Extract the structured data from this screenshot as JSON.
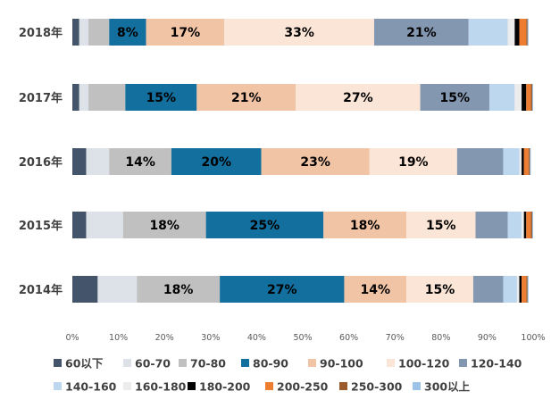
{
  "chart_data": {
    "type": "bar",
    "orientation": "horizontal",
    "stacked": "percent",
    "categories": [
      "2018年",
      "2017年",
      "2016年",
      "2015年",
      "2014年"
    ],
    "xlim": [
      0,
      100
    ],
    "xticks": [
      "0%",
      "10%",
      "20%",
      "30%",
      "40%",
      "50%",
      "60%",
      "70%",
      "80%",
      "90%",
      "100%"
    ],
    "grid": false,
    "legend_position": "bottom",
    "series": [
      {
        "name": "60以下",
        "color": "#44546a",
        "label_color": "#ffffff",
        "values": [
          1.5,
          1.5,
          3.0,
          3.0,
          5.5
        ]
      },
      {
        "name": "60-70",
        "color": "#dde1e8",
        "label_color": "#000000",
        "values": [
          2.0,
          2.0,
          5.0,
          8.0,
          8.5
        ]
      },
      {
        "name": "70-80",
        "color": "#c0c0c0",
        "label_color": "#000000",
        "values": [
          4.5,
          8.0,
          13.5,
          18.0,
          18.0
        ]
      },
      {
        "name": "80-90",
        "color": "#136f9e",
        "label_color": "#000000",
        "values": [
          8.0,
          15.5,
          19.5,
          25.5,
          27.0
        ]
      },
      {
        "name": "90-100",
        "color": "#f2c4a6",
        "label_color": "#000000",
        "values": [
          17.0,
          21.5,
          23.5,
          18.0,
          13.5
        ]
      },
      {
        "name": "100-120",
        "color": "#fbe5d6",
        "label_color": "#000000",
        "values": [
          32.5,
          27.0,
          19.0,
          15.0,
          14.5
        ]
      },
      {
        "name": "120-140",
        "color": "#8497b0",
        "label_color": "#000000",
        "values": [
          20.5,
          15.0,
          10.0,
          7.0,
          6.5
        ]
      },
      {
        "name": "140-160",
        "color": "#bdd7ee",
        "label_color": "#000000",
        "values": [
          8.5,
          5.5,
          3.5,
          3.0,
          3.0
        ]
      },
      {
        "name": "160-180",
        "color": "#ececec",
        "label_color": "#000000",
        "values": [
          1.5,
          1.5,
          0.5,
          0.5,
          0.5
        ]
      },
      {
        "name": "180-200",
        "color": "#000000",
        "label_color": "#ffffff",
        "values": [
          1.0,
          1.0,
          0.5,
          0.5,
          0.5
        ]
      },
      {
        "name": "200-250",
        "color": "#ed7d31",
        "label_color": "#000000",
        "values": [
          1.5,
          1.0,
          1.0,
          1.0,
          1.0
        ]
      },
      {
        "name": "250-300",
        "color": "#9c5b2b",
        "label_color": "#ffffff",
        "values": [
          0.3,
          0.3,
          0.3,
          0.3,
          0.3
        ]
      },
      {
        "name": "300以上",
        "color": "#9dc3e6",
        "label_color": "#000000",
        "values": [
          0.2,
          0.2,
          0.2,
          0.2,
          0.2
        ]
      }
    ],
    "data_labels": [
      {
        "series": "80-90",
        "category": "2018年",
        "text": "8%"
      },
      {
        "series": "90-100",
        "category": "2018年",
        "text": "17%"
      },
      {
        "series": "100-120",
        "category": "2018年",
        "text": "33%"
      },
      {
        "series": "120-140",
        "category": "2018年",
        "text": "21%"
      },
      {
        "series": "80-90",
        "category": "2017年",
        "text": "15%"
      },
      {
        "series": "90-100",
        "category": "2017年",
        "text": "21%"
      },
      {
        "series": "100-120",
        "category": "2017年",
        "text": "27%"
      },
      {
        "series": "120-140",
        "category": "2017年",
        "text": "15%"
      },
      {
        "series": "70-80",
        "category": "2016年",
        "text": "14%"
      },
      {
        "series": "80-90",
        "category": "2016年",
        "text": "20%"
      },
      {
        "series": "90-100",
        "category": "2016年",
        "text": "23%"
      },
      {
        "series": "100-120",
        "category": "2016年",
        "text": "19%"
      },
      {
        "series": "70-80",
        "category": "2015年",
        "text": "18%"
      },
      {
        "series": "80-90",
        "category": "2015年",
        "text": "25%"
      },
      {
        "series": "90-100",
        "category": "2015年",
        "text": "18%"
      },
      {
        "series": "100-120",
        "category": "2015年",
        "text": "15%"
      },
      {
        "series": "70-80",
        "category": "2014年",
        "text": "18%"
      },
      {
        "series": "80-90",
        "category": "2014年",
        "text": "27%"
      },
      {
        "series": "90-100",
        "category": "2014年",
        "text": "14%"
      },
      {
        "series": "100-120",
        "category": "2014年",
        "text": "15%"
      }
    ]
  }
}
